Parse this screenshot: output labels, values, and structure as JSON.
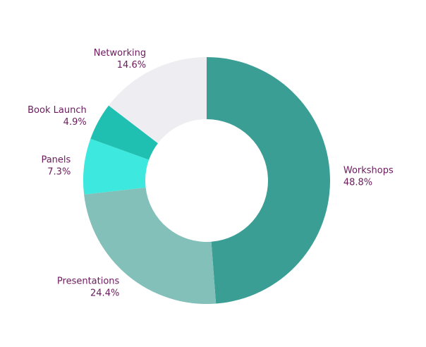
{
  "chart_data": {
    "type": "pie",
    "donut": true,
    "labels": [
      "Workshops",
      "Presentations",
      "Panels",
      "Book Launch",
      "Networking"
    ],
    "values": [
      48.8,
      24.4,
      7.3,
      4.9,
      14.6
    ],
    "value_labels": [
      "48.8%",
      "24.4%",
      "7.3%",
      "4.9%",
      "14.6%"
    ],
    "unit": "%",
    "colors": [
      "#3a9e95",
      "#83c0b9",
      "#3de8de",
      "#1fbfb2",
      "#eeeef2"
    ],
    "label_color": "#6b1a5c",
    "start": "top, clockwise",
    "legend": "none (labels outside slices)"
  }
}
